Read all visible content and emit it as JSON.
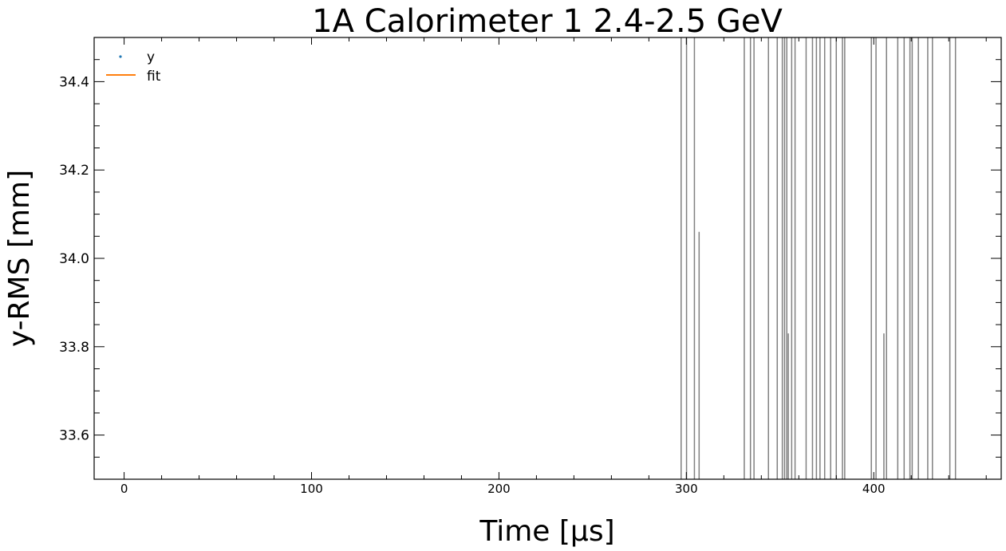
{
  "chart_data": {
    "type": "scatter",
    "title": "1A Calorimeter 1        2.4-2.5 GeV",
    "xlabel": "Time     [μs]",
    "ylabel": "y-RMS    [mm]",
    "xlim": [
      -16,
      468
    ],
    "ylim": [
      33.5,
      34.5
    ],
    "x_ticks": [
      0,
      100,
      200,
      300,
      400
    ],
    "y_ticks": [
      33.6,
      33.8,
      34.0,
      34.2,
      34.4
    ],
    "grid": false,
    "legend": {
      "position": "top-left",
      "entries": [
        "y",
        "fit"
      ]
    },
    "series": [
      {
        "name": "y",
        "kind": "points",
        "color": "#1f77b4"
      },
      {
        "name": "fit",
        "kind": "line",
        "color": "#ff7f0e"
      }
    ],
    "error_bars": {
      "color": "#808080",
      "bars": [
        {
          "x": 297.2,
          "y_low": 33.5,
          "y_high": 34.5
        },
        {
          "x": 300.1,
          "y_low": 33.5,
          "y_high": 34.5
        },
        {
          "x": 304.3,
          "y_low": 33.5,
          "y_high": 34.5
        },
        {
          "x": 306.8,
          "y_low": 33.5,
          "y_high": 34.06
        },
        {
          "x": 330.9,
          "y_low": 33.5,
          "y_high": 34.5
        },
        {
          "x": 334.2,
          "y_low": 33.5,
          "y_high": 34.5
        },
        {
          "x": 336.1,
          "y_low": 33.5,
          "y_high": 34.5
        },
        {
          "x": 343.8,
          "y_low": 33.5,
          "y_high": 34.5
        },
        {
          "x": 348.5,
          "y_low": 33.5,
          "y_high": 34.5
        },
        {
          "x": 351.2,
          "y_low": 33.5,
          "y_high": 34.5
        },
        {
          "x": 352.4,
          "y_low": 33.5,
          "y_high": 34.5
        },
        {
          "x": 353.6,
          "y_low": 33.5,
          "y_high": 34.5
        },
        {
          "x": 354.4,
          "y_low": 33.5,
          "y_high": 33.83
        },
        {
          "x": 356.2,
          "y_low": 33.5,
          "y_high": 34.5
        },
        {
          "x": 358.0,
          "y_low": 33.5,
          "y_high": 34.5
        },
        {
          "x": 363.9,
          "y_low": 33.5,
          "y_high": 34.5
        },
        {
          "x": 367.3,
          "y_low": 33.5,
          "y_high": 34.5
        },
        {
          "x": 369.4,
          "y_low": 33.5,
          "y_high": 34.5
        },
        {
          "x": 371.3,
          "y_low": 33.5,
          "y_high": 34.5
        },
        {
          "x": 373.8,
          "y_low": 33.5,
          "y_high": 34.5
        },
        {
          "x": 377.0,
          "y_low": 33.5,
          "y_high": 34.5
        },
        {
          "x": 380.0,
          "y_low": 33.5,
          "y_high": 34.5
        },
        {
          "x": 383.3,
          "y_low": 33.5,
          "y_high": 34.5
        },
        {
          "x": 384.5,
          "y_low": 33.5,
          "y_high": 34.5
        },
        {
          "x": 398.7,
          "y_low": 33.5,
          "y_high": 34.5
        },
        {
          "x": 401.2,
          "y_low": 33.5,
          "y_high": 34.5
        },
        {
          "x": 405.4,
          "y_low": 33.5,
          "y_high": 33.83
        },
        {
          "x": 406.8,
          "y_low": 33.5,
          "y_high": 34.5
        },
        {
          "x": 412.8,
          "y_low": 33.5,
          "y_high": 34.5
        },
        {
          "x": 416.2,
          "y_low": 33.5,
          "y_high": 34.5
        },
        {
          "x": 419.3,
          "y_low": 33.5,
          "y_high": 34.5
        },
        {
          "x": 420.5,
          "y_low": 33.5,
          "y_high": 34.5
        },
        {
          "x": 423.8,
          "y_low": 33.5,
          "y_high": 34.5
        },
        {
          "x": 428.8,
          "y_low": 33.5,
          "y_high": 34.5
        },
        {
          "x": 431.3,
          "y_low": 33.5,
          "y_high": 34.5
        },
        {
          "x": 440.6,
          "y_low": 33.5,
          "y_high": 34.5
        },
        {
          "x": 443.6,
          "y_low": 33.5,
          "y_high": 34.5
        }
      ]
    }
  }
}
